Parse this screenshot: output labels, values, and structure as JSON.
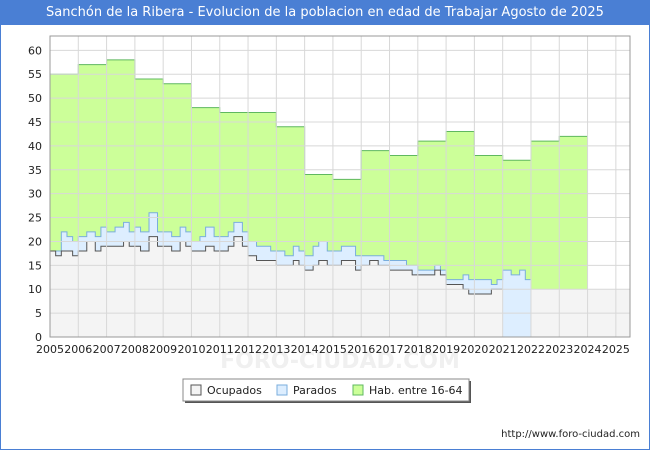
{
  "chart_data": {
    "type": "area",
    "title": "Sanchón de la Ribera - Evolucion de la poblacion en edad de Trabajar Agosto de 2025",
    "x_ticks": [
      "2005",
      "2006",
      "2007",
      "2008",
      "2009",
      "2010",
      "2011",
      "2012",
      "2013",
      "2014",
      "2015",
      "2016",
      "2017",
      "2018",
      "2019",
      "2020",
      "2021",
      "2022",
      "2023",
      "2024",
      "2025"
    ],
    "xlim": [
      2005,
      2025.5
    ],
    "ylim": [
      0,
      63
    ],
    "y_ticks": [
      0,
      5,
      10,
      15,
      20,
      25,
      30,
      35,
      40,
      45,
      50,
      55,
      60
    ],
    "grid": true,
    "legend_position": "bottom-center",
    "series": [
      {
        "name": "Hab. entre 16-64",
        "color": "#ccff99",
        "line_color": "#5fb85f",
        "points": [
          [
            2005.0,
            55
          ],
          [
            2006.0,
            57
          ],
          [
            2007.0,
            58
          ],
          [
            2008.0,
            54
          ],
          [
            2009.0,
            53
          ],
          [
            2010.0,
            48
          ],
          [
            2011.0,
            47
          ],
          [
            2012.0,
            47
          ],
          [
            2013.0,
            44
          ],
          [
            2014.0,
            34
          ],
          [
            2015.0,
            33
          ],
          [
            2016.0,
            39
          ],
          [
            2017.0,
            38
          ],
          [
            2018.0,
            41
          ],
          [
            2019.0,
            43
          ],
          [
            2020.0,
            38
          ],
          [
            2021.0,
            37
          ],
          [
            2022.0,
            41
          ],
          [
            2023.0,
            42
          ],
          [
            2024.0,
            42
          ]
        ],
        "end": 2024.0
      },
      {
        "name": "Parados",
        "color": "#ddeeff",
        "line_color": "#7aaedd",
        "points": [
          [
            2005.0,
            18
          ],
          [
            2005.2,
            18
          ],
          [
            2005.4,
            22
          ],
          [
            2005.6,
            21
          ],
          [
            2005.8,
            20
          ],
          [
            2006.0,
            21
          ],
          [
            2006.3,
            22
          ],
          [
            2006.6,
            21
          ],
          [
            2006.8,
            23
          ],
          [
            2007.0,
            22
          ],
          [
            2007.3,
            23
          ],
          [
            2007.6,
            24
          ],
          [
            2007.8,
            22
          ],
          [
            2008.0,
            23
          ],
          [
            2008.2,
            22
          ],
          [
            2008.5,
            26
          ],
          [
            2008.8,
            22
          ],
          [
            2009.0,
            22
          ],
          [
            2009.3,
            21
          ],
          [
            2009.6,
            23
          ],
          [
            2009.8,
            22
          ],
          [
            2010.0,
            20
          ],
          [
            2010.3,
            21
          ],
          [
            2010.5,
            23
          ],
          [
            2010.8,
            21
          ],
          [
            2011.0,
            21
          ],
          [
            2011.3,
            22
          ],
          [
            2011.5,
            24
          ],
          [
            2011.8,
            22
          ],
          [
            2012.0,
            20
          ],
          [
            2012.3,
            19
          ],
          [
            2012.6,
            19
          ],
          [
            2012.8,
            18
          ],
          [
            2013.0,
            18
          ],
          [
            2013.3,
            17
          ],
          [
            2013.6,
            19
          ],
          [
            2013.8,
            18
          ],
          [
            2014.0,
            17
          ],
          [
            2014.3,
            19
          ],
          [
            2014.5,
            20
          ],
          [
            2014.8,
            18
          ],
          [
            2015.0,
            18
          ],
          [
            2015.3,
            19
          ],
          [
            2015.6,
            19
          ],
          [
            2015.8,
            17
          ],
          [
            2016.0,
            17
          ],
          [
            2016.3,
            17
          ],
          [
            2016.6,
            17
          ],
          [
            2016.8,
            16
          ],
          [
            2017.0,
            16
          ],
          [
            2017.3,
            16
          ],
          [
            2017.6,
            15
          ],
          [
            2017.8,
            15
          ],
          [
            2018.0,
            14
          ],
          [
            2018.3,
            14
          ],
          [
            2018.6,
            15
          ],
          [
            2018.8,
            14
          ],
          [
            2019.0,
            12
          ],
          [
            2019.3,
            12
          ],
          [
            2019.6,
            13
          ],
          [
            2019.8,
            12
          ],
          [
            2020.0,
            12
          ],
          [
            2020.3,
            12
          ],
          [
            2020.6,
            11
          ],
          [
            2020.8,
            12
          ],
          [
            2021.0,
            14
          ],
          [
            2021.3,
            13
          ],
          [
            2021.6,
            14
          ],
          [
            2021.8,
            12
          ]
        ],
        "end": 2022.0
      },
      {
        "name": "Ocupados",
        "color": "#f4f4f4",
        "line_color": "#555555",
        "points": [
          [
            2005.0,
            18
          ],
          [
            2005.2,
            17
          ],
          [
            2005.4,
            18
          ],
          [
            2005.6,
            18
          ],
          [
            2005.8,
            17
          ],
          [
            2006.0,
            18
          ],
          [
            2006.3,
            20
          ],
          [
            2006.6,
            18
          ],
          [
            2006.8,
            19
          ],
          [
            2007.0,
            19
          ],
          [
            2007.3,
            19
          ],
          [
            2007.6,
            20
          ],
          [
            2007.8,
            19
          ],
          [
            2008.0,
            19
          ],
          [
            2008.2,
            18
          ],
          [
            2008.5,
            21
          ],
          [
            2008.8,
            19
          ],
          [
            2009.0,
            19
          ],
          [
            2009.3,
            18
          ],
          [
            2009.6,
            20
          ],
          [
            2009.8,
            19
          ],
          [
            2010.0,
            18
          ],
          [
            2010.3,
            18
          ],
          [
            2010.5,
            19
          ],
          [
            2010.8,
            18
          ],
          [
            2011.0,
            18
          ],
          [
            2011.3,
            19
          ],
          [
            2011.5,
            21
          ],
          [
            2011.8,
            19
          ],
          [
            2012.0,
            17
          ],
          [
            2012.3,
            16
          ],
          [
            2012.6,
            16
          ],
          [
            2012.8,
            16
          ],
          [
            2013.0,
            15
          ],
          [
            2013.3,
            15
          ],
          [
            2013.6,
            16
          ],
          [
            2013.8,
            15
          ],
          [
            2014.0,
            14
          ],
          [
            2014.3,
            15
          ],
          [
            2014.5,
            16
          ],
          [
            2014.8,
            15
          ],
          [
            2015.0,
            15
          ],
          [
            2015.3,
            16
          ],
          [
            2015.6,
            16
          ],
          [
            2015.8,
            14
          ],
          [
            2016.0,
            15
          ],
          [
            2016.3,
            16
          ],
          [
            2016.6,
            15
          ],
          [
            2016.8,
            15
          ],
          [
            2017.0,
            14
          ],
          [
            2017.3,
            14
          ],
          [
            2017.6,
            14
          ],
          [
            2017.8,
            13
          ],
          [
            2018.0,
            13
          ],
          [
            2018.3,
            13
          ],
          [
            2018.6,
            14
          ],
          [
            2018.8,
            13
          ],
          [
            2019.0,
            11
          ],
          [
            2019.3,
            11
          ],
          [
            2019.6,
            10
          ],
          [
            2019.8,
            9
          ],
          [
            2020.0,
            9
          ],
          [
            2020.3,
            9
          ],
          [
            2020.6,
            10
          ],
          [
            2020.8,
            10
          ]
        ],
        "end": 2021.0
      }
    ],
    "legend": [
      {
        "label": "Ocupados",
        "color": "#f4f4f4",
        "border": "#555555"
      },
      {
        "label": "Parados",
        "color": "#ddeeff",
        "border": "#7aaedd"
      },
      {
        "label": "Hab. entre 16-64",
        "color": "#ccff99",
        "border": "#5fb85f"
      }
    ],
    "watermark": "FORO-CIUDAD.COM"
  },
  "footer": {
    "url": "http://www.foro-ciudad.com"
  }
}
